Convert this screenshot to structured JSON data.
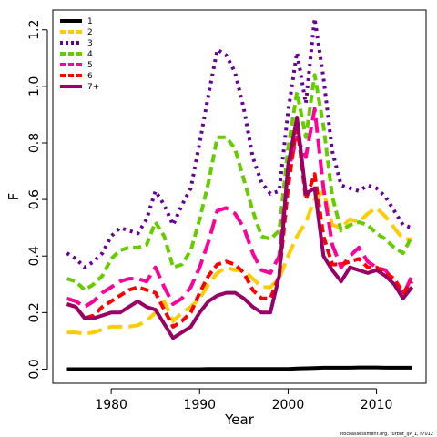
{
  "chart_data": {
    "type": "line",
    "xlabel": "Year",
    "ylabel": "F",
    "xlim": [
      1973.4,
      2015.6
    ],
    "ylim": [
      -0.05,
      1.27
    ],
    "x_ticks": [
      1980,
      1990,
      2000,
      2010
    ],
    "y_ticks": [
      0.0,
      0.2,
      0.4,
      0.6,
      0.8,
      1.0,
      1.2
    ],
    "y_tick_labels": [
      "0.0",
      "0.2",
      "0.4",
      "0.6",
      "0.8",
      "1.0",
      "1.2"
    ],
    "legend_position": "top-left",
    "credit": "stockassessment.org, turbot_IJP_1, r7012",
    "x": [
      1975,
      1976,
      1977,
      1978,
      1979,
      1980,
      1981,
      1982,
      1983,
      1984,
      1985,
      1986,
      1987,
      1988,
      1989,
      1990,
      1991,
      1992,
      1993,
      1994,
      1995,
      1996,
      1997,
      1998,
      1999,
      2000,
      2001,
      2002,
      2003,
      2004,
      2005,
      2006,
      2007,
      2008,
      2009,
      2010,
      2011,
      2012,
      2013,
      2014
    ],
    "series": [
      {
        "name": "1",
        "color": "#000000",
        "dash": "solid",
        "values": [
          0.0,
          0.0,
          0.0,
          0.0,
          0.0,
          0.0,
          0.0,
          0.0,
          0.0,
          0.0,
          0.0,
          0.0,
          0.0,
          0.0,
          0.0,
          0.0,
          0.001,
          0.001,
          0.001,
          0.001,
          0.001,
          0.001,
          0.001,
          0.001,
          0.001,
          0.001,
          0.002,
          0.003,
          0.004,
          0.005,
          0.005,
          0.005,
          0.005,
          0.006,
          0.006,
          0.006,
          0.005,
          0.005,
          0.005,
          0.005
        ]
      },
      {
        "name": "2",
        "color": "#FFCC00",
        "dash": "long",
        "values": [
          0.13,
          0.13,
          0.125,
          0.13,
          0.14,
          0.15,
          0.15,
          0.15,
          0.155,
          0.17,
          0.2,
          0.24,
          0.17,
          0.2,
          0.22,
          0.25,
          0.3,
          0.34,
          0.36,
          0.35,
          0.35,
          0.32,
          0.29,
          0.29,
          0.32,
          0.4,
          0.47,
          0.52,
          0.6,
          0.63,
          0.51,
          0.5,
          0.53,
          0.52,
          0.55,
          0.57,
          0.54,
          0.5,
          0.46,
          0.46
        ]
      },
      {
        "name": "3",
        "color": "#660099",
        "dash": "dotted",
        "values": [
          0.41,
          0.39,
          0.36,
          0.38,
          0.41,
          0.47,
          0.5,
          0.49,
          0.48,
          0.53,
          0.63,
          0.58,
          0.51,
          0.58,
          0.64,
          0.8,
          0.97,
          1.13,
          1.11,
          1.05,
          0.92,
          0.75,
          0.66,
          0.62,
          0.63,
          0.91,
          1.12,
          0.94,
          1.24,
          1.03,
          0.77,
          0.65,
          0.64,
          0.63,
          0.65,
          0.64,
          0.61,
          0.56,
          0.51,
          0.5
        ]
      },
      {
        "name": "4",
        "color": "#66CC00",
        "dash": "dashed",
        "values": [
          0.32,
          0.31,
          0.28,
          0.3,
          0.33,
          0.39,
          0.42,
          0.43,
          0.43,
          0.44,
          0.52,
          0.47,
          0.36,
          0.37,
          0.42,
          0.53,
          0.66,
          0.82,
          0.82,
          0.78,
          0.67,
          0.56,
          0.47,
          0.46,
          0.49,
          0.78,
          0.98,
          0.82,
          1.04,
          0.86,
          0.61,
          0.49,
          0.51,
          0.52,
          0.51,
          0.48,
          0.46,
          0.43,
          0.41,
          0.47
        ]
      },
      {
        "name": "5",
        "color": "#FF0099",
        "dash": "long",
        "values": [
          0.25,
          0.24,
          0.22,
          0.24,
          0.27,
          0.29,
          0.31,
          0.32,
          0.32,
          0.31,
          0.36,
          0.29,
          0.23,
          0.25,
          0.29,
          0.36,
          0.45,
          0.56,
          0.57,
          0.55,
          0.5,
          0.41,
          0.35,
          0.34,
          0.4,
          0.7,
          0.82,
          0.75,
          0.92,
          0.64,
          0.44,
          0.36,
          0.4,
          0.43,
          0.38,
          0.36,
          0.35,
          0.31,
          0.26,
          0.33
        ]
      },
      {
        "name": "6",
        "color": "#FF0000",
        "dash": "dashed",
        "values": [
          0.23,
          0.22,
          0.18,
          0.19,
          0.22,
          0.24,
          0.26,
          0.28,
          0.29,
          0.28,
          0.27,
          0.21,
          0.15,
          0.17,
          0.2,
          0.27,
          0.33,
          0.37,
          0.38,
          0.37,
          0.34,
          0.28,
          0.25,
          0.25,
          0.33,
          0.64,
          0.87,
          0.6,
          0.69,
          0.47,
          0.37,
          0.37,
          0.38,
          0.39,
          0.36,
          0.36,
          0.34,
          0.32,
          0.27,
          0.31
        ]
      },
      {
        "name": "7+",
        "color": "#990066",
        "dash": "solid",
        "values": [
          0.23,
          0.22,
          0.18,
          0.18,
          0.19,
          0.2,
          0.2,
          0.22,
          0.24,
          0.22,
          0.21,
          0.16,
          0.11,
          0.13,
          0.15,
          0.2,
          0.24,
          0.26,
          0.27,
          0.27,
          0.25,
          0.22,
          0.2,
          0.2,
          0.33,
          0.72,
          0.89,
          0.62,
          0.64,
          0.4,
          0.35,
          0.31,
          0.36,
          0.35,
          0.34,
          0.35,
          0.33,
          0.3,
          0.25,
          0.29
        ]
      }
    ]
  }
}
